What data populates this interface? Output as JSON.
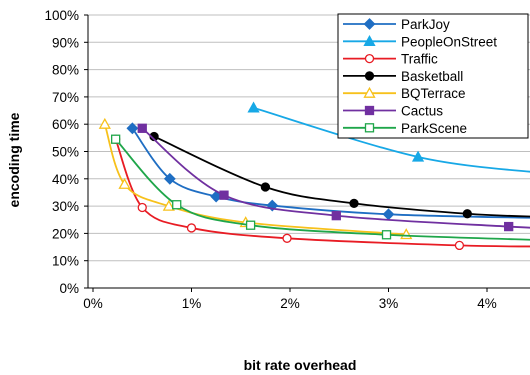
{
  "chart_data": {
    "type": "line",
    "title": "",
    "xlabel": "bit rate overhead",
    "ylabel": "encoding time",
    "xlim": [
      0,
      4.5
    ],
    "ylim": [
      0,
      100
    ],
    "x_ticks": [
      0,
      1,
      2,
      3,
      4
    ],
    "x_tick_labels": [
      "0%",
      "1%",
      "2%",
      "3%",
      "4%"
    ],
    "y_ticks": [
      0,
      10,
      20,
      30,
      40,
      50,
      60,
      70,
      80,
      90,
      100
    ],
    "y_tick_labels": [
      "0%",
      "10%",
      "20%",
      "30%",
      "40%",
      "50%",
      "60%",
      "70%",
      "80%",
      "90%",
      "100%"
    ],
    "grid": "horizontal",
    "legend_position": "top-right",
    "series": [
      {
        "name": "ParkJoy",
        "color": "#1f6ec3",
        "marker": "diamond",
        "points": [
          [
            0.4,
            58.5
          ],
          [
            0.78,
            40
          ],
          [
            1.25,
            33.5
          ],
          [
            1.82,
            30.2
          ],
          [
            3.0,
            27
          ],
          [
            4.6,
            25.6
          ]
        ]
      },
      {
        "name": "PeopleOnStreet",
        "color": "#17a8e6",
        "marker": "triangle",
        "points": [
          [
            1.63,
            66
          ],
          [
            3.3,
            48
          ],
          [
            4.6,
            42
          ]
        ]
      },
      {
        "name": "Traffic",
        "color": "#e81c24",
        "marker": "circle-open",
        "points": [
          [
            0.23,
            54.5
          ],
          [
            0.5,
            29.5
          ],
          [
            1.0,
            22
          ],
          [
            1.97,
            18.2
          ],
          [
            3.72,
            15.6
          ],
          [
            4.6,
            15.2
          ]
        ]
      },
      {
        "name": "Basketball",
        "color": "#000000",
        "marker": "circle",
        "points": [
          [
            0.62,
            55.5
          ],
          [
            1.75,
            37
          ],
          [
            2.65,
            31
          ],
          [
            3.8,
            27.2
          ],
          [
            4.6,
            26
          ]
        ]
      },
      {
        "name": "BQTerrace",
        "color": "#f7c11b",
        "marker": "triangle-open",
        "points": [
          [
            0.12,
            60
          ],
          [
            0.32,
            38
          ],
          [
            0.77,
            30
          ],
          [
            1.55,
            24
          ],
          [
            3.18,
            19.6
          ]
        ]
      },
      {
        "name": "Cactus",
        "color": "#7030a0",
        "marker": "square",
        "points": [
          [
            0.5,
            58.5
          ],
          [
            1.33,
            34
          ],
          [
            2.47,
            26.5
          ],
          [
            4.22,
            22.5
          ],
          [
            4.6,
            22
          ]
        ]
      },
      {
        "name": "ParkScene",
        "color": "#1fa64a",
        "marker": "square-open",
        "points": [
          [
            0.23,
            54.5
          ],
          [
            0.85,
            30.5
          ],
          [
            1.6,
            23
          ],
          [
            2.98,
            19.5
          ],
          [
            4.6,
            17.5
          ]
        ]
      }
    ]
  }
}
